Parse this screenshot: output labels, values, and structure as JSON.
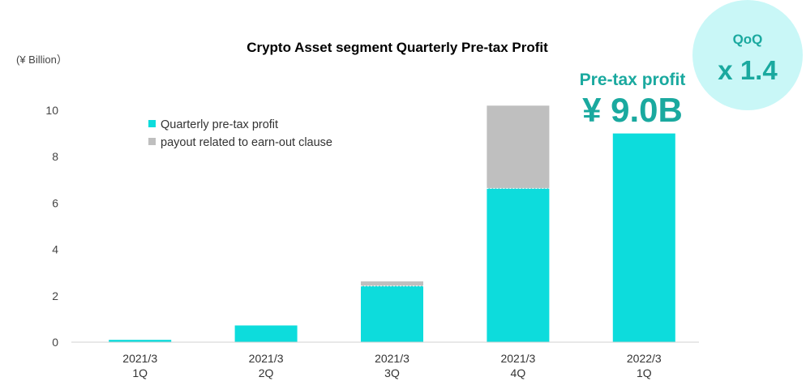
{
  "chart_data": {
    "type": "bar",
    "stacked": true,
    "title": "Crypto Asset segment  Quarterly Pre-tax Profit",
    "unit_label": "(¥ Billion）",
    "ylim": [
      0,
      10
    ],
    "yticks": [
      0,
      2,
      4,
      6,
      8,
      10
    ],
    "grid": false,
    "legend_position": "top-left",
    "categories": [
      [
        "2021/3",
        "1Q"
      ],
      [
        "2021/3",
        "2Q"
      ],
      [
        "2021/3",
        "3Q"
      ],
      [
        "2021/3",
        "4Q"
      ],
      [
        "2022/3",
        "1Q"
      ]
    ],
    "series": [
      {
        "name": "Quarterly pre-tax profit",
        "color": "#0ddcdc",
        "values": [
          0.1,
          0.72,
          2.42,
          6.63,
          9.0
        ]
      },
      {
        "name": "payout related to earn-out clause",
        "color": "#bfbfbf",
        "values": [
          0,
          0,
          0.2,
          3.57,
          0
        ]
      }
    ],
    "callout": {
      "label": "Pre-tax profit",
      "value": "¥ 9.0B",
      "color": "#1aa99f"
    },
    "badge": {
      "label": "QoQ",
      "value": "x 1.4",
      "bg_color": "#c9f7f7",
      "text_color": "#1aa99f"
    }
  }
}
